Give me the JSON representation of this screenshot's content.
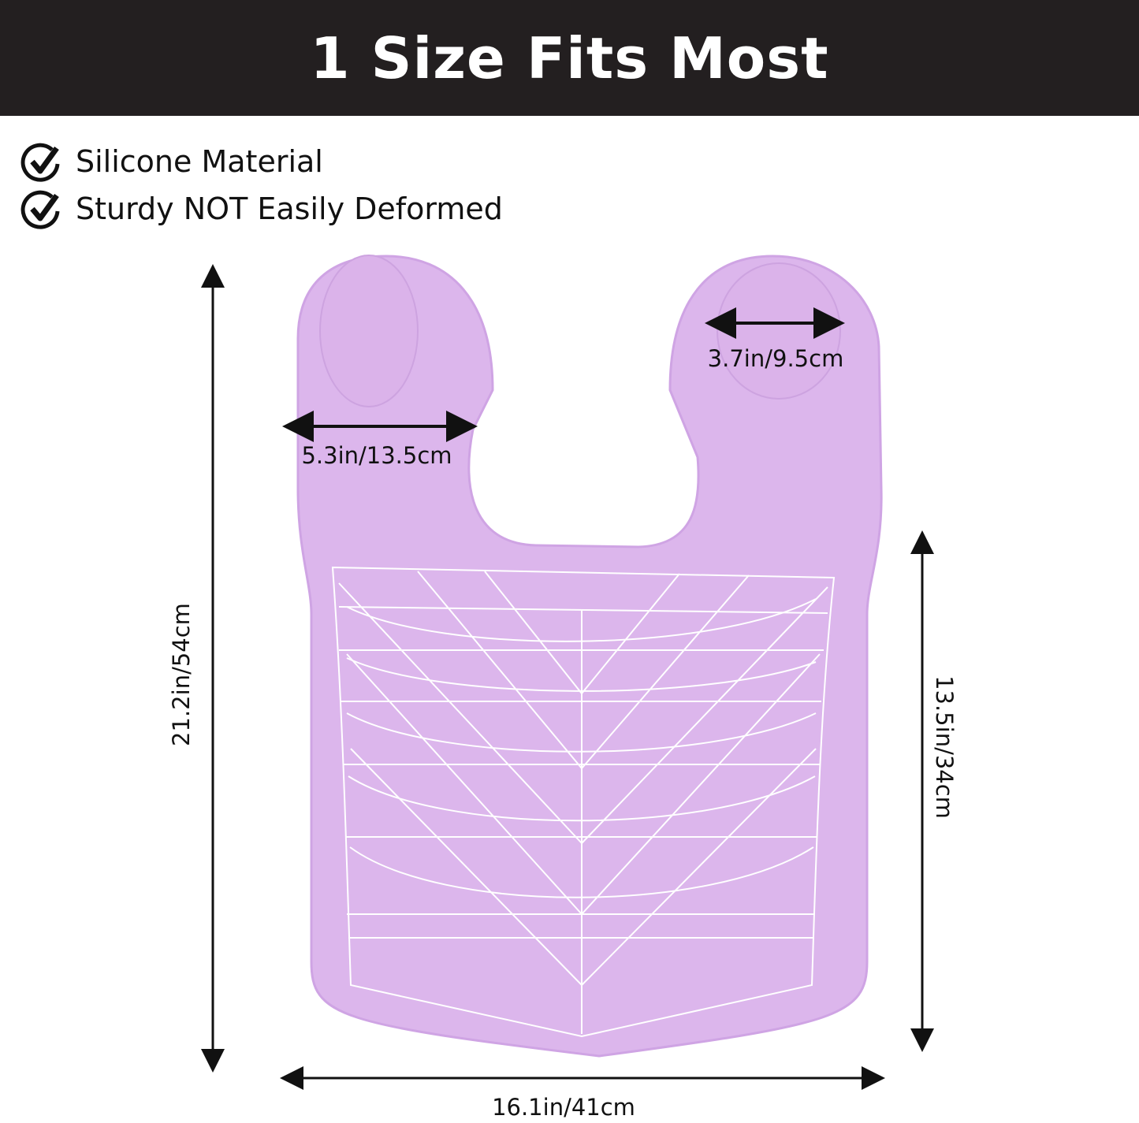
{
  "title": "1 Size Fits Most",
  "features": [
    {
      "icon": "check-circle-icon",
      "text": "Silicone Material"
    },
    {
      "icon": "check-circle-icon",
      "text": "Sturdy NOT Easily Deformed"
    }
  ],
  "dimensions": {
    "total_length": "21.2in/54cm",
    "body_length": "13.5in/34cm",
    "width": "16.1in/41cm",
    "shoulder_width": "5.3in/13.5cm",
    "circle_diameter": "3.7in/9.5cm"
  },
  "colors": {
    "banner": "#231f20",
    "bib": "#dcb6ec",
    "pattern": "#ffffff"
  }
}
